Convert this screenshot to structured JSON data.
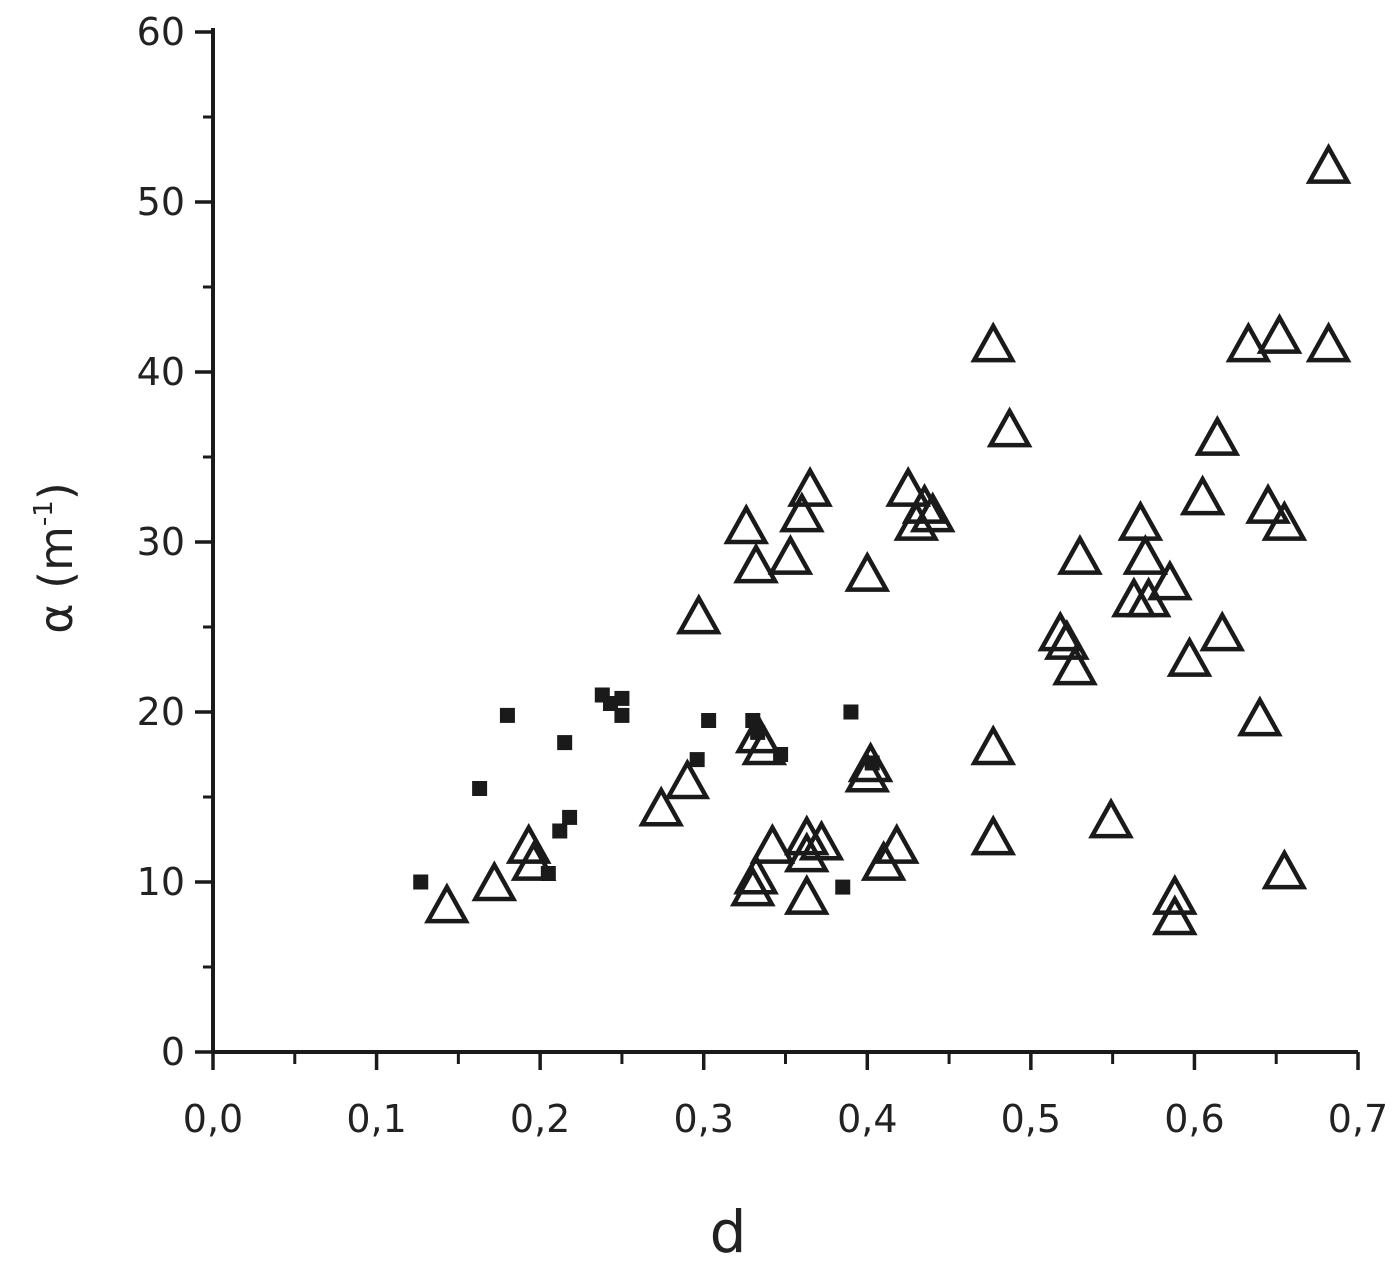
{
  "chart_data": {
    "type": "scatter",
    "xlabel": "d",
    "ylabel": "α (m",
    "ylabel_exponent": "-1",
    "ylabel_close": ")",
    "xlim": [
      0.0,
      0.7
    ],
    "ylim": [
      0,
      60
    ],
    "x_ticks": [
      0.0,
      0.1,
      0.2,
      0.3,
      0.4,
      0.5,
      0.6,
      0.7
    ],
    "x_tick_labels": [
      "0,0",
      "0,1",
      "0,2",
      "0,3",
      "0,4",
      "0,5",
      "0,6",
      "0,7"
    ],
    "y_ticks": [
      0,
      10,
      20,
      30,
      40,
      50,
      60
    ],
    "y_tick_labels": [
      "0",
      "10",
      "20",
      "30",
      "40",
      "50",
      "60"
    ],
    "grid": false,
    "series": [
      {
        "marker": "open-triangle",
        "points": [
          [
            0.143,
            8.5
          ],
          [
            0.172,
            9.8
          ],
          [
            0.193,
            12.0
          ],
          [
            0.196,
            11.0
          ],
          [
            0.274,
            14.2
          ],
          [
            0.29,
            15.8
          ],
          [
            0.297,
            25.5
          ],
          [
            0.326,
            30.8
          ],
          [
            0.332,
            28.5
          ],
          [
            0.33,
            9.5
          ],
          [
            0.332,
            10.2
          ],
          [
            0.333,
            18.5
          ],
          [
            0.337,
            17.8
          ],
          [
            0.342,
            12.0
          ],
          [
            0.353,
            29.0
          ],
          [
            0.36,
            31.5
          ],
          [
            0.365,
            33.0
          ],
          [
            0.363,
            12.5
          ],
          [
            0.363,
            11.5
          ],
          [
            0.363,
            9.0
          ],
          [
            0.372,
            12.2
          ],
          [
            0.4,
            28.0
          ],
          [
            0.4,
            16.2
          ],
          [
            0.402,
            16.8
          ],
          [
            0.41,
            11.0
          ],
          [
            0.418,
            12.0
          ],
          [
            0.425,
            33.0
          ],
          [
            0.43,
            31.0
          ],
          [
            0.435,
            32.0
          ],
          [
            0.44,
            31.5
          ],
          [
            0.477,
            41.5
          ],
          [
            0.477,
            17.8
          ],
          [
            0.477,
            12.5
          ],
          [
            0.487,
            36.5
          ],
          [
            0.518,
            24.5
          ],
          [
            0.522,
            24.0
          ],
          [
            0.527,
            22.5
          ],
          [
            0.53,
            29.0
          ],
          [
            0.549,
            13.5
          ],
          [
            0.563,
            26.5
          ],
          [
            0.567,
            31.0
          ],
          [
            0.57,
            29.0
          ],
          [
            0.572,
            26.5
          ],
          [
            0.585,
            27.5
          ],
          [
            0.588,
            9.0
          ],
          [
            0.588,
            7.8
          ],
          [
            0.597,
            23.0
          ],
          [
            0.605,
            32.5
          ],
          [
            0.614,
            36.0
          ],
          [
            0.617,
            24.5
          ],
          [
            0.633,
            41.5
          ],
          [
            0.64,
            19.5
          ],
          [
            0.645,
            32.0
          ],
          [
            0.652,
            42.0
          ],
          [
            0.655,
            31.0
          ],
          [
            0.655,
            10.5
          ],
          [
            0.682,
            52.0
          ],
          [
            0.682,
            41.5
          ]
        ]
      },
      {
        "marker": "filled-square",
        "points": [
          [
            0.127,
            10.0
          ],
          [
            0.163,
            15.5
          ],
          [
            0.18,
            19.8
          ],
          [
            0.205,
            10.5
          ],
          [
            0.212,
            13.0
          ],
          [
            0.215,
            18.2
          ],
          [
            0.218,
            13.8
          ],
          [
            0.238,
            21.0
          ],
          [
            0.243,
            20.5
          ],
          [
            0.25,
            20.8
          ],
          [
            0.25,
            19.8
          ],
          [
            0.296,
            17.2
          ],
          [
            0.303,
            19.5
          ],
          [
            0.33,
            19.5
          ],
          [
            0.333,
            18.8
          ],
          [
            0.347,
            17.5
          ],
          [
            0.385,
            9.7
          ],
          [
            0.39,
            20.0
          ],
          [
            0.403,
            17.0
          ]
        ]
      }
    ]
  }
}
